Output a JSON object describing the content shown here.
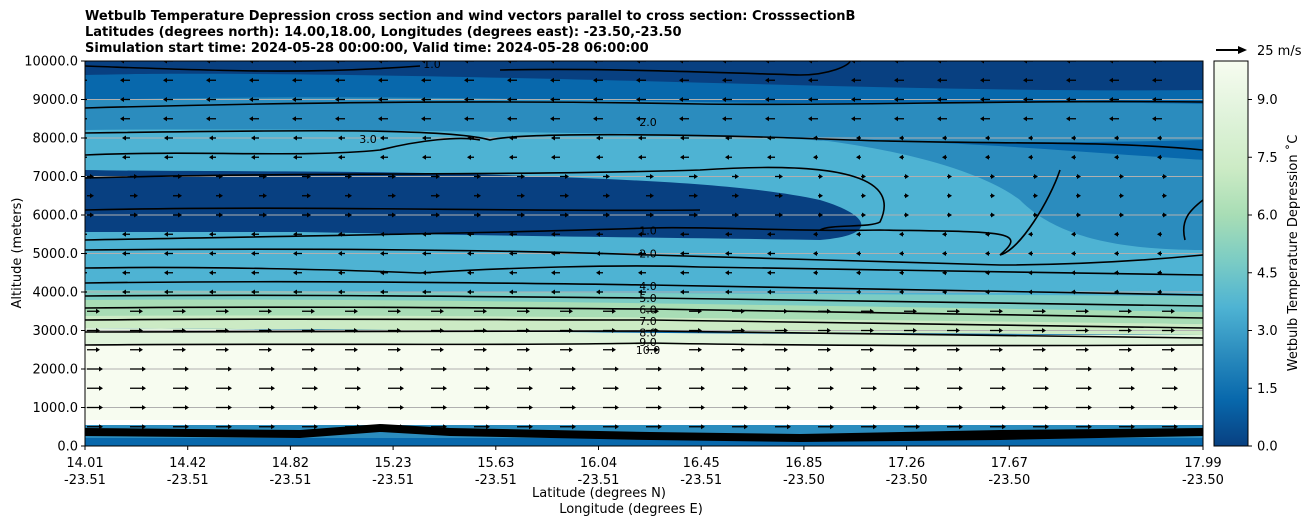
{
  "chart_data": {
    "type": "heatmap",
    "title_lines": [
      "Wetbulb Temperature Depression cross section and wind vectors parallel to cross section: CrosssectionB",
      "Latitudes (degrees north): 14.00,18.00, Longitudes (degrees east): -23.50,-23.50",
      "Simulation start time: 2024-05-28 00:00:00, Valid time: 2024-05-28 06:00:00"
    ],
    "xlabel_line1": "Latitude (degrees N)",
    "xlabel_line2": "Longitude (degrees E)",
    "ylabel": "Altitude (meters)",
    "colorbar_label": "Wetbulb Temperature Depression ˚C",
    "colorbar_ticks": [
      "0.0",
      "1.5",
      "3.0",
      "4.5",
      "6.0",
      "7.5",
      "9.0"
    ],
    "colorbar_range": [
      0,
      10
    ],
    "colorbar_colors": [
      "#084081",
      "#0868ac",
      "#2b8cbe",
      "#4eb3d3",
      "#7bccc4",
      "#a8ddb5",
      "#ccebc5",
      "#e0f3db",
      "#f7fcf0"
    ],
    "wind_key_label": "25 m/s",
    "ylim": [
      0,
      10000
    ],
    "y_ticks": [
      0,
      1000,
      2000,
      3000,
      4000,
      5000,
      6000,
      7000,
      8000,
      9000,
      10000
    ],
    "y_tick_labels": [
      "0.0",
      "1000.0",
      "2000.0",
      "3000.0",
      "4000.0",
      "5000.0",
      "6000.0",
      "7000.0",
      "8000.0",
      "9000.0",
      "10000.0"
    ],
    "x_ticks": [
      {
        "lat": "14.01",
        "lon": "-23.51"
      },
      {
        "lat": "14.42",
        "lon": "-23.51"
      },
      {
        "lat": "14.82",
        "lon": "-23.51"
      },
      {
        "lat": "15.23",
        "lon": "-23.51"
      },
      {
        "lat": "15.63",
        "lon": "-23.51"
      },
      {
        "lat": "16.04",
        "lon": "-23.51"
      },
      {
        "lat": "16.45",
        "lon": "-23.51"
      },
      {
        "lat": "16.85",
        "lon": "-23.50"
      },
      {
        "lat": "17.26",
        "lon": "-23.50"
      },
      {
        "lat": "17.67",
        "lon": "-23.50"
      },
      {
        "lat": "17.99",
        "lon": "-23.50"
      }
    ],
    "contour_levels": [
      {
        "level": "1.0",
        "altitude": 5600
      },
      {
        "level": "2.0",
        "altitude": 5000
      },
      {
        "level": "4.0",
        "altitude": 4150
      },
      {
        "level": "5.0",
        "altitude": 3850
      },
      {
        "level": "6.0",
        "altitude": 3550
      },
      {
        "level": "7.0",
        "altitude": 3250
      },
      {
        "level": "8.0",
        "altitude": 2950
      },
      {
        "level": "9.0",
        "altitude": 2700
      },
      {
        "level": "10.0",
        "altitude": 2500
      },
      {
        "level": "2.0",
        "altitude": 8600
      },
      {
        "level": "3.0",
        "altitude": 8100
      },
      {
        "level": "1.0",
        "altitude": 9800
      }
    ]
  }
}
